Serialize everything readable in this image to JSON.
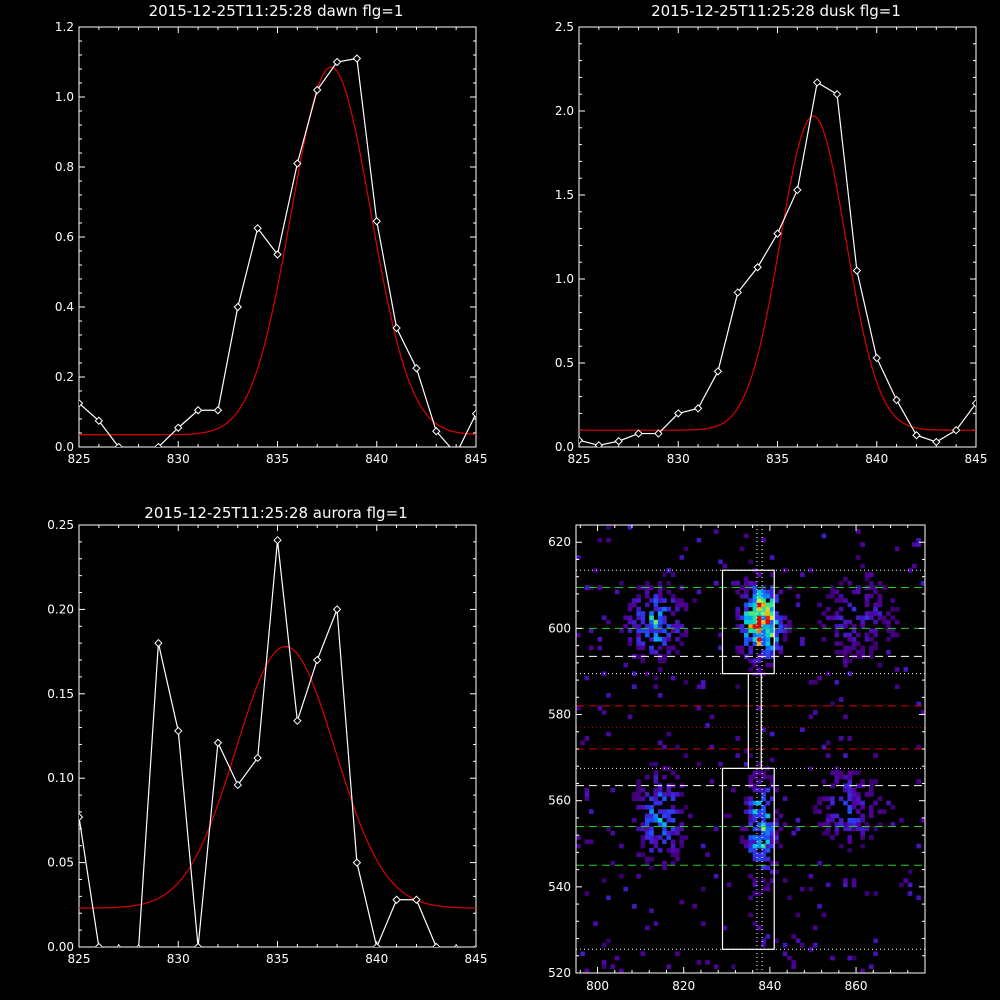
{
  "chart_data": [
    {
      "type": "line",
      "title": "2015-12-25T11:25:28 dawn flg=1",
      "xlim": [
        825,
        845
      ],
      "ylim": [
        0,
        1.2
      ],
      "xticks": [
        "825",
        "830",
        "835",
        "840",
        "845"
      ],
      "yticks": [
        "0.0",
        "0.2",
        "0.4",
        "0.6",
        "0.8",
        "1.0",
        "1.2"
      ],
      "x": [
        825,
        826,
        827,
        828,
        829,
        830,
        831,
        832,
        833,
        834,
        835,
        836,
        837,
        838,
        839,
        840,
        841,
        842,
        843,
        844,
        845
      ],
      "y": [
        0.125,
        0.075,
        0.0,
        -0.01,
        0.0,
        0.055,
        0.105,
        0.105,
        0.4,
        0.625,
        0.55,
        0.81,
        1.02,
        1.1,
        1.11,
        0.645,
        0.34,
        0.225,
        0.045,
        -0.02,
        0.095
      ],
      "fit": {
        "amplitude": 1.05,
        "center": 837.7,
        "sigma": 2.0,
        "offset": 0.035
      },
      "colors": {
        "data": "#ffffff",
        "fit": "#dd0000"
      }
    },
    {
      "type": "line",
      "title": "2015-12-25T11:25:28 dusk flg=1",
      "xlim": [
        825,
        845
      ],
      "ylim": [
        0,
        2.5
      ],
      "xticks": [
        "825",
        "830",
        "835",
        "840",
        "845"
      ],
      "yticks": [
        "0.0",
        "0.5",
        "1.0",
        "1.5",
        "2.0",
        "2.5"
      ],
      "x": [
        825,
        826,
        827,
        828,
        829,
        830,
        831,
        832,
        833,
        834,
        835,
        836,
        837,
        838,
        839,
        840,
        841,
        842,
        843,
        844,
        845
      ],
      "y": [
        0.04,
        0.01,
        0.035,
        0.08,
        0.08,
        0.2,
        0.23,
        0.45,
        0.92,
        1.07,
        1.27,
        1.53,
        2.17,
        2.1,
        1.05,
        0.53,
        0.28,
        0.07,
        0.03,
        0.1,
        0.26
      ],
      "fit": {
        "amplitude": 1.87,
        "center": 836.8,
        "sigma": 1.65,
        "offset": 0.1
      },
      "colors": {
        "data": "#ffffff",
        "fit": "#dd0000"
      }
    },
    {
      "type": "line",
      "title": "2015-12-25T11:25:28 aurora flg=1",
      "xlim": [
        825,
        845
      ],
      "ylim": [
        0,
        0.25
      ],
      "xticks": [
        "825",
        "830",
        "835",
        "840",
        "845"
      ],
      "yticks": [
        "0.00",
        "0.05",
        "0.10",
        "0.15",
        "0.20",
        "0.25"
      ],
      "x": [
        825,
        826,
        827,
        828,
        829,
        830,
        831,
        832,
        833,
        834,
        835,
        836,
        837,
        838,
        839,
        840,
        841,
        842,
        843,
        844,
        845
      ],
      "y": [
        0.077,
        0.0,
        -0.001,
        -0.001,
        0.18,
        0.128,
        0.0,
        0.121,
        0.096,
        0.112,
        0.241,
        0.134,
        0.17,
        0.2,
        0.05,
        0.0,
        0.028,
        0.028,
        0.0,
        -0.001,
        -0.001
      ],
      "fit": {
        "amplitude": 0.155,
        "center": 835.4,
        "sigma": 2.5,
        "offset": 0.023
      },
      "colors": {
        "data": "#ffffff",
        "fit": "#dd0000"
      }
    },
    {
      "type": "heatmap",
      "xlim": [
        795,
        876
      ],
      "ylim": [
        520,
        624
      ],
      "xticks": [
        "800",
        "820",
        "840",
        "860"
      ],
      "yticks": [
        "520",
        "540",
        "560",
        "580",
        "600",
        "620"
      ],
      "vertical_lines": [
        {
          "x": 837.0,
          "style": "dotted",
          "color": "#ffffff"
        },
        {
          "x": 838.2,
          "style": "dotted",
          "color": "#ffffff"
        }
      ],
      "horizontal_lines": [
        {
          "y": 613.5,
          "style": "dotted",
          "color": "#ffffff"
        },
        {
          "y": 609.5,
          "style": "dashed",
          "color": "#22cc22"
        },
        {
          "y": 600.0,
          "style": "dashed",
          "color": "#22cc22"
        },
        {
          "y": 593.5,
          "style": "dashed",
          "color": "#ffffff"
        },
        {
          "y": 589.5,
          "style": "dotted",
          "color": "#ffffff"
        },
        {
          "y": 582.0,
          "style": "dashed",
          "color": "#dd0000"
        },
        {
          "y": 577.0,
          "style": "dotted",
          "color": "#aa0000"
        },
        {
          "y": 572.0,
          "style": "dashed",
          "color": "#dd0000"
        },
        {
          "y": 567.5,
          "style": "dotted",
          "color": "#ffffff"
        },
        {
          "y": 563.5,
          "style": "dashed",
          "color": "#ffffff"
        },
        {
          "y": 554.0,
          "style": "dashed",
          "color": "#22cc22"
        },
        {
          "y": 545.0,
          "style": "dashed",
          "color": "#22cc22"
        },
        {
          "y": 525.5,
          "style": "dotted",
          "color": "#ffffff"
        }
      ],
      "boxes": [
        {
          "x0": 829,
          "x1": 841,
          "y0": 589.5,
          "y1": 613.5
        },
        {
          "x0": 835,
          "x1": 838,
          "y0": 567.5,
          "y1": 589.5
        },
        {
          "x0": 829,
          "x1": 841,
          "y0": 525.5,
          "y1": 567.5
        }
      ],
      "hot_regions": [
        {
          "xc": 837.5,
          "yc": 601,
          "sx": 3.0,
          "sy": 5.5,
          "peak": 1.0
        },
        {
          "xc": 837.5,
          "yc": 553,
          "sx": 2.5,
          "sy": 8.0,
          "peak": 0.6
        },
        {
          "xc": 813,
          "yc": 601,
          "sx": 4.0,
          "sy": 5.0,
          "peak": 0.55
        },
        {
          "xc": 814,
          "yc": 556,
          "sx": 3.5,
          "sy": 7.0,
          "peak": 0.45
        },
        {
          "xc": 858,
          "yc": 558,
          "sx": 5.0,
          "sy": 6.0,
          "peak": 0.3
        },
        {
          "xc": 860,
          "yc": 602,
          "sx": 6.0,
          "sy": 6.0,
          "peak": 0.28
        }
      ]
    }
  ]
}
